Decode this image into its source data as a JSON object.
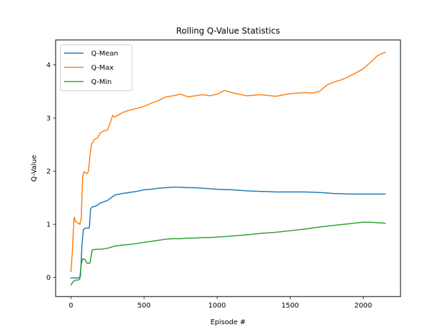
{
  "chart_data": {
    "type": "line",
    "title": "Rolling Q-Value Statistics",
    "xlabel": "Episode #",
    "ylabel": "Q-Value",
    "xlim": [
      -105,
      2255
    ],
    "ylim": [
      -0.36,
      4.47
    ],
    "xticks": [
      {
        "value": 0,
        "label": "0"
      },
      {
        "value": 500,
        "label": "500"
      },
      {
        "value": 1000,
        "label": "1000"
      },
      {
        "value": 1500,
        "label": "1500"
      },
      {
        "value": 2000,
        "label": "2000"
      }
    ],
    "yticks": [
      {
        "value": 0,
        "label": "0"
      },
      {
        "value": 1,
        "label": "1"
      },
      {
        "value": 2,
        "label": "2"
      },
      {
        "value": 3,
        "label": "3"
      },
      {
        "value": 4,
        "label": "4"
      }
    ],
    "grid": false,
    "legend_position": "top-left",
    "series": [
      {
        "name": "Q-Mean",
        "color": "#1f77b4",
        "points": [
          [
            0,
            -0.01
          ],
          [
            20,
            -0.01
          ],
          [
            40,
            -0.01
          ],
          [
            55,
            -0.01
          ],
          [
            65,
            0.02
          ],
          [
            75,
            0.6
          ],
          [
            85,
            0.9
          ],
          [
            100,
            0.93
          ],
          [
            125,
            0.93
          ],
          [
            135,
            1.3
          ],
          [
            150,
            1.33
          ],
          [
            175,
            1.35
          ],
          [
            200,
            1.4
          ],
          [
            250,
            1.45
          ],
          [
            275,
            1.5
          ],
          [
            300,
            1.55
          ],
          [
            350,
            1.58
          ],
          [
            400,
            1.6
          ],
          [
            450,
            1.62
          ],
          [
            500,
            1.65
          ],
          [
            550,
            1.66
          ],
          [
            600,
            1.68
          ],
          [
            650,
            1.69
          ],
          [
            700,
            1.7
          ],
          [
            750,
            1.7
          ],
          [
            800,
            1.69
          ],
          [
            850,
            1.69
          ],
          [
            900,
            1.68
          ],
          [
            950,
            1.67
          ],
          [
            1000,
            1.66
          ],
          [
            1100,
            1.65
          ],
          [
            1200,
            1.63
          ],
          [
            1300,
            1.62
          ],
          [
            1400,
            1.61
          ],
          [
            1500,
            1.61
          ],
          [
            1600,
            1.61
          ],
          [
            1700,
            1.6
          ],
          [
            1800,
            1.58
          ],
          [
            1900,
            1.57
          ],
          [
            2000,
            1.57
          ],
          [
            2100,
            1.57
          ],
          [
            2150,
            1.57
          ]
        ]
      },
      {
        "name": "Q-Max",
        "color": "#ff7f0e",
        "points": [
          [
            0,
            0.11
          ],
          [
            10,
            0.5
          ],
          [
            20,
            1.1
          ],
          [
            25,
            1.13
          ],
          [
            30,
            1.05
          ],
          [
            45,
            1.03
          ],
          [
            60,
            1.0
          ],
          [
            70,
            1.1
          ],
          [
            80,
            1.9
          ],
          [
            90,
            1.99
          ],
          [
            110,
            1.95
          ],
          [
            120,
            2.0
          ],
          [
            130,
            2.3
          ],
          [
            140,
            2.5
          ],
          [
            160,
            2.6
          ],
          [
            180,
            2.62
          ],
          [
            200,
            2.72
          ],
          [
            220,
            2.75
          ],
          [
            250,
            2.78
          ],
          [
            270,
            2.92
          ],
          [
            285,
            3.05
          ],
          [
            300,
            3.02
          ],
          [
            350,
            3.1
          ],
          [
            400,
            3.15
          ],
          [
            450,
            3.18
          ],
          [
            500,
            3.22
          ],
          [
            550,
            3.28
          ],
          [
            600,
            3.33
          ],
          [
            650,
            3.4
          ],
          [
            700,
            3.42
          ],
          [
            750,
            3.45
          ],
          [
            800,
            3.4
          ],
          [
            850,
            3.42
          ],
          [
            900,
            3.44
          ],
          [
            950,
            3.42
          ],
          [
            1000,
            3.45
          ],
          [
            1050,
            3.52
          ],
          [
            1100,
            3.48
          ],
          [
            1150,
            3.45
          ],
          [
            1200,
            3.42
          ],
          [
            1300,
            3.44
          ],
          [
            1400,
            3.41
          ],
          [
            1500,
            3.46
          ],
          [
            1600,
            3.48
          ],
          [
            1650,
            3.47
          ],
          [
            1700,
            3.5
          ],
          [
            1750,
            3.62
          ],
          [
            1800,
            3.68
          ],
          [
            1850,
            3.72
          ],
          [
            1900,
            3.78
          ],
          [
            1950,
            3.85
          ],
          [
            2000,
            3.93
          ],
          [
            2050,
            4.05
          ],
          [
            2100,
            4.18
          ],
          [
            2150,
            4.24
          ]
        ]
      },
      {
        "name": "Q-Min",
        "color": "#2ca02c",
        "points": [
          [
            0,
            -0.14
          ],
          [
            15,
            -0.08
          ],
          [
            30,
            -0.05
          ],
          [
            50,
            -0.05
          ],
          [
            60,
            -0.03
          ],
          [
            70,
            0.25
          ],
          [
            80,
            0.35
          ],
          [
            95,
            0.34
          ],
          [
            110,
            0.27
          ],
          [
            130,
            0.27
          ],
          [
            145,
            0.52
          ],
          [
            175,
            0.53
          ],
          [
            200,
            0.53
          ],
          [
            250,
            0.55
          ],
          [
            300,
            0.59
          ],
          [
            350,
            0.61
          ],
          [
            400,
            0.62
          ],
          [
            450,
            0.64
          ],
          [
            500,
            0.66
          ],
          [
            550,
            0.68
          ],
          [
            600,
            0.7
          ],
          [
            650,
            0.72
          ],
          [
            700,
            0.73
          ],
          [
            750,
            0.73
          ],
          [
            800,
            0.74
          ],
          [
            850,
            0.74
          ],
          [
            900,
            0.75
          ],
          [
            950,
            0.75
          ],
          [
            1000,
            0.76
          ],
          [
            1100,
            0.78
          ],
          [
            1200,
            0.8
          ],
          [
            1300,
            0.83
          ],
          [
            1400,
            0.85
          ],
          [
            1500,
            0.88
          ],
          [
            1600,
            0.91
          ],
          [
            1700,
            0.95
          ],
          [
            1800,
            0.98
          ],
          [
            1900,
            1.01
          ],
          [
            2000,
            1.04
          ],
          [
            2050,
            1.04
          ],
          [
            2100,
            1.03
          ],
          [
            2150,
            1.02
          ]
        ]
      }
    ]
  }
}
